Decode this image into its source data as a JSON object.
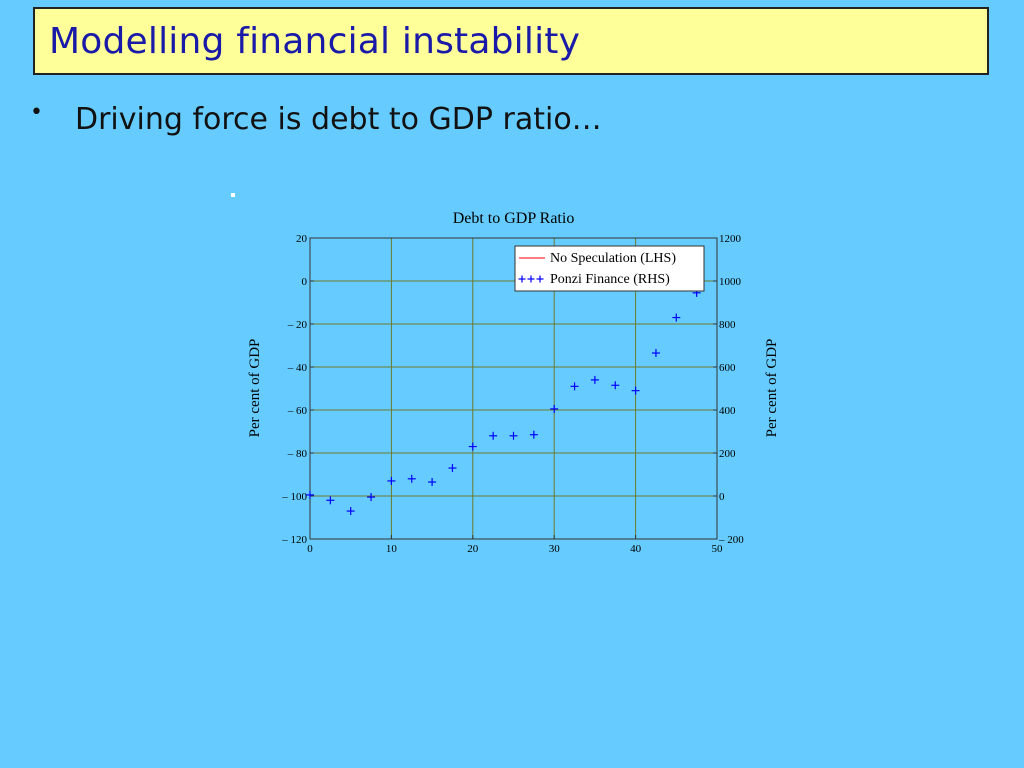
{
  "slide": {
    "title": "Modelling financial instability",
    "bullet": "•",
    "bullet_text": "Driving force is debt to GDP ratio…"
  },
  "colors": {
    "background": "#66ccff",
    "title_fill": "#ffff99",
    "title_text": "#1a1aa8",
    "grid": "#6b7a2a",
    "series_lhs": "#ff0000",
    "series_rhs": "#0000ff"
  },
  "chart_data": {
    "type": "scatter",
    "title": "Debt to GDP Ratio",
    "xlabel": "",
    "ylabel_left": "Per cent of GDP",
    "ylabel_right": "Per cent of GDP",
    "xlim": [
      0,
      50
    ],
    "ylim_left": [
      -120,
      20
    ],
    "ylim_right": [
      -200,
      1200
    ],
    "x_ticks": [
      "0",
      "10",
      "20",
      "30",
      "40",
      "50"
    ],
    "y_ticks_left": [
      "20",
      "0",
      "– 20",
      "– 40",
      "– 60",
      "– 80",
      "– 100",
      "– 120"
    ],
    "y_ticks_right": [
      "1200",
      "1000",
      "800",
      "600",
      "400",
      "200",
      "0",
      "– 200"
    ],
    "grid": true,
    "legend_position": "top-right",
    "series": [
      {
        "name": "No Speculation (LHS)",
        "axis": "left",
        "style": "line",
        "color": "#ff0000",
        "x": [],
        "y": []
      },
      {
        "name": "Ponzi Finance (RHS)",
        "axis": "right",
        "style": "plus",
        "marker": "+++",
        "color": "#0000ff",
        "x": [
          0,
          2.5,
          5,
          7.5,
          10,
          12.5,
          15,
          17.5,
          20,
          22.5,
          25,
          27.5,
          30,
          32.5,
          35,
          37.5,
          40,
          42.5,
          45,
          47.5
        ],
        "y": [
          5,
          -20,
          -70,
          -5,
          70,
          80,
          65,
          130,
          230,
          280,
          280,
          285,
          405,
          510,
          540,
          515,
          490,
          665,
          830,
          945
        ]
      }
    ]
  }
}
